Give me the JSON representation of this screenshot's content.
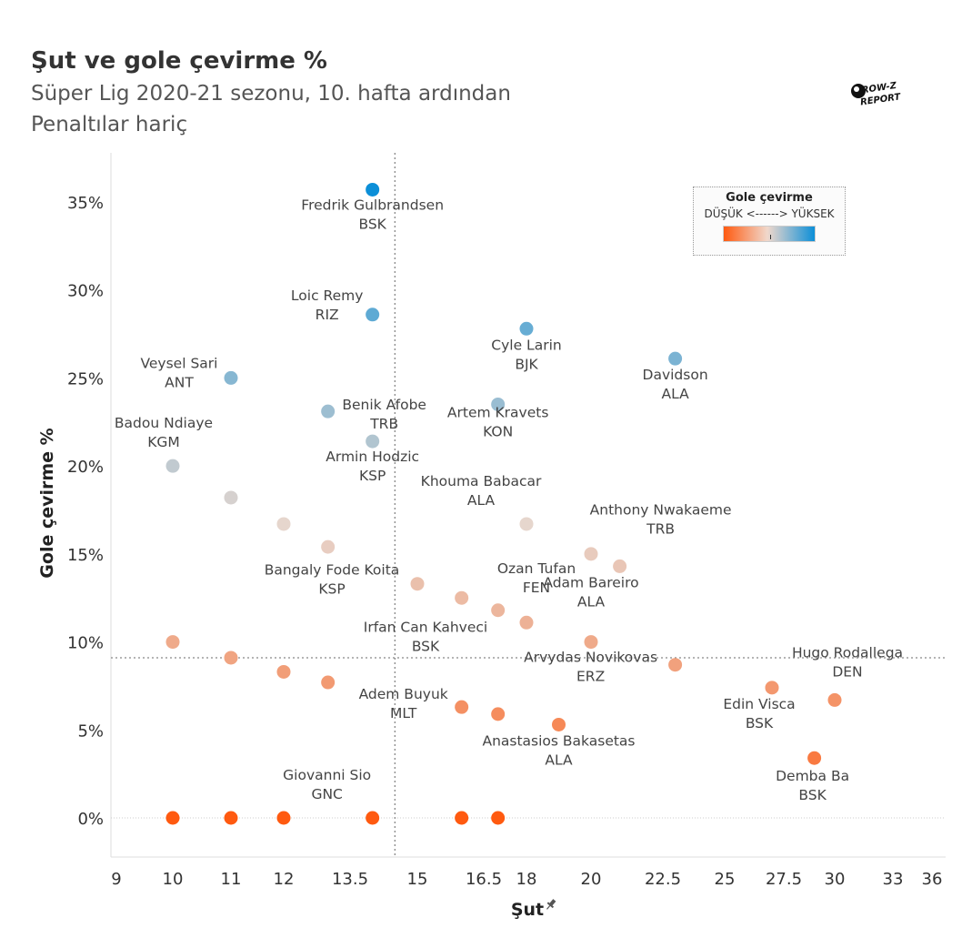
{
  "header": {
    "title": "Şut ve gole çevirme %",
    "subtitle": "Süper Lig 2020-21 sezonu, 10. hafta ardından",
    "note": "Penaltılar hariç"
  },
  "logo": {
    "line1": "ROW-Z",
    "line2": "REPORT"
  },
  "legend": {
    "title": "Gole çevirme",
    "subtitle": "DÜŞÜK <------> YÜKSEK",
    "low_color": "#ff5a10",
    "high_color": "#0c8fd8"
  },
  "chart_data": {
    "type": "scatter",
    "xlabel": "Şut",
    "ylabel": "Gole çevirme %",
    "xlim": [
      9,
      36
    ],
    "ylim": [
      -2.2,
      37.5
    ],
    "x_ticks": [
      9,
      10,
      11,
      12,
      13.5,
      15,
      16.5,
      18,
      20,
      22.5,
      25,
      27.5,
      30,
      33,
      36
    ],
    "x_tick_labels": [
      "9",
      "10",
      "11",
      "12",
      "13.5",
      "15",
      "16.5",
      "18",
      "20",
      "22.5",
      "25",
      "27.5",
      "30",
      "33",
      "36"
    ],
    "y_ticks": [
      0,
      5,
      10,
      15,
      20,
      25,
      30,
      35
    ],
    "y_tick_labels": [
      "0%",
      "5%",
      "10%",
      "15%",
      "20%",
      "25%",
      "30%",
      "35%"
    ],
    "reference_lines": {
      "x": 14.5,
      "y": 9.1
    },
    "points": [
      {
        "x": 14,
        "y": 35.7,
        "name": "Fredrik Gulbrandsen",
        "team": "BSK"
      },
      {
        "x": 14,
        "y": 28.6,
        "name": "Loic Remy",
        "team": "RIZ"
      },
      {
        "x": 18,
        "y": 27.8,
        "name": "Cyle Larin",
        "team": "BJK"
      },
      {
        "x": 23,
        "y": 26.1,
        "name": "Davidson",
        "team": "ALA"
      },
      {
        "x": 11,
        "y": 25.0,
        "name": "Veysel Sari",
        "team": "ANT"
      },
      {
        "x": 17,
        "y": 23.5,
        "name": "Artem Kravets",
        "team": "KON"
      },
      {
        "x": 13,
        "y": 23.1,
        "name": "Benik Afobe",
        "team": "TRB"
      },
      {
        "x": 14,
        "y": 21.4,
        "name": "Armin Hodzic",
        "team": "KSP"
      },
      {
        "x": 10,
        "y": 20.0,
        "name": "Badou Ndiaye",
        "team": "KGM"
      },
      {
        "x": 11,
        "y": 18.2,
        "name": "",
        "team": ""
      },
      {
        "x": 12,
        "y": 16.7,
        "name": "",
        "team": ""
      },
      {
        "x": 18,
        "y": 16.7,
        "name": "Khouma Babacar",
        "team": "ALA"
      },
      {
        "x": 13,
        "y": 15.4,
        "name": "",
        "team": ""
      },
      {
        "x": 20,
        "y": 15.0,
        "name": "Ozan Tufan",
        "team": "FEN"
      },
      {
        "x": 21,
        "y": 14.3,
        "name": "Anthony Nwakaeme",
        "team": "TRB"
      },
      {
        "x": 15,
        "y": 13.3,
        "name": "Bangaly Fode Koita",
        "team": "KSP"
      },
      {
        "x": 16,
        "y": 12.5,
        "name": "",
        "team": ""
      },
      {
        "x": 17,
        "y": 11.8,
        "name": "",
        "team": ""
      },
      {
        "x": 18,
        "y": 11.1,
        "name": "Irfan Can Kahveci",
        "team": "BSK"
      },
      {
        "x": 10,
        "y": 10.0,
        "name": "",
        "team": ""
      },
      {
        "x": 20,
        "y": 10.0,
        "name": "Adam Bareiro",
        "team": "ALA"
      },
      {
        "x": 11,
        "y": 9.1,
        "name": "",
        "team": ""
      },
      {
        "x": 23,
        "y": 8.7,
        "name": "Arvydas Novikovas",
        "team": "ERZ"
      },
      {
        "x": 12,
        "y": 8.3,
        "name": "",
        "team": ""
      },
      {
        "x": 13,
        "y": 7.7,
        "name": "",
        "team": ""
      },
      {
        "x": 27,
        "y": 7.4,
        "name": "Edin Visca",
        "team": "BSK"
      },
      {
        "x": 30,
        "y": 6.7,
        "name": "Hugo Rodallega",
        "team": "DEN"
      },
      {
        "x": 16,
        "y": 6.3,
        "name": "Adem Buyuk",
        "team": "MLT"
      },
      {
        "x": 17,
        "y": 5.9,
        "name": "",
        "team": ""
      },
      {
        "x": 19,
        "y": 5.3,
        "name": "Anastasios Bakasetas",
        "team": "ALA"
      },
      {
        "x": 29,
        "y": 3.4,
        "name": "Demba Ba",
        "team": "BSK"
      },
      {
        "x": 10,
        "y": 0,
        "name": "",
        "team": ""
      },
      {
        "x": 11,
        "y": 0,
        "name": "",
        "team": ""
      },
      {
        "x": 12,
        "y": 0,
        "name": "",
        "team": ""
      },
      {
        "x": 14,
        "y": 0,
        "name": "Giovanni Sio",
        "team": "GNC"
      },
      {
        "x": 16,
        "y": 0,
        "name": "",
        "team": ""
      },
      {
        "x": 17,
        "y": 0,
        "name": "",
        "team": ""
      }
    ]
  }
}
